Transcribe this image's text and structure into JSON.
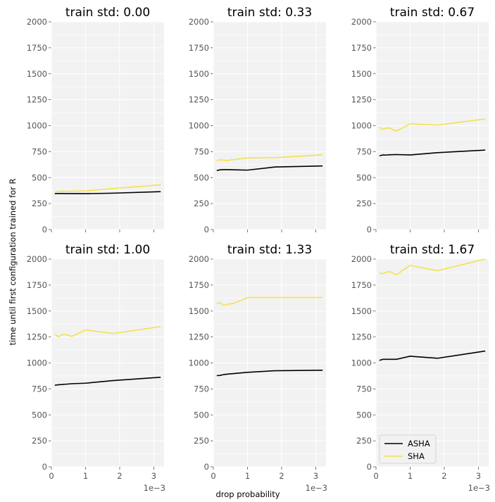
{
  "figure": {
    "xlabel": "drop probability",
    "ylabel": "time until first configuration trained for R",
    "x_offset_text": "1e−3"
  },
  "legend": {
    "position": "lower-left",
    "panel_index": 5
  },
  "chart_data": [
    {
      "type": "line",
      "title": "train std: 0.00",
      "x": [
        0.0001,
        0.0002,
        0.0003,
        0.0004,
        0.0006,
        0.001,
        0.0018,
        0.0032
      ],
      "xlim": [
        0,
        0.0033
      ],
      "ylim": [
        0,
        2000
      ],
      "xticks": [
        0,
        0.001,
        0.002,
        0.003
      ],
      "yticks": [
        0,
        250,
        500,
        750,
        1000,
        1250,
        1500,
        1750,
        2000
      ],
      "xtick_labels": [],
      "series": [
        {
          "name": "ASHA",
          "color": "#000000",
          "values": [
            345,
            347,
            347,
            346,
            346,
            345,
            350,
            365
          ]
        },
        {
          "name": "SHA",
          "color": "#f5e04a",
          "values": [
            360,
            368,
            370,
            368,
            369,
            372,
            395,
            430
          ]
        }
      ]
    },
    {
      "type": "line",
      "title": "train std: 0.33",
      "x": [
        0.0001,
        0.0002,
        0.0003,
        0.0004,
        0.0006,
        0.001,
        0.0018,
        0.0032
      ],
      "xlim": [
        0,
        0.0033
      ],
      "ylim": [
        0,
        2000
      ],
      "xticks": [
        0,
        0.001,
        0.002,
        0.003
      ],
      "yticks": [
        0,
        250,
        500,
        750,
        1000,
        1250,
        1500,
        1750,
        2000
      ],
      "xtick_labels": [],
      "series": [
        {
          "name": "ASHA",
          "color": "#000000",
          "values": [
            568,
            575,
            577,
            577,
            575,
            572,
            602,
            612
          ]
        },
        {
          "name": "SHA",
          "color": "#f5e04a",
          "values": [
            665,
            672,
            668,
            665,
            673,
            690,
            692,
            720
          ]
        }
      ]
    },
    {
      "type": "line",
      "title": "train std: 0.67",
      "x": [
        0.0001,
        0.0002,
        0.0003,
        0.0004,
        0.0006,
        0.001,
        0.0018,
        0.0032
      ],
      "xlim": [
        0,
        0.0033
      ],
      "ylim": [
        0,
        2000
      ],
      "xticks": [
        0,
        0.001,
        0.002,
        0.003
      ],
      "yticks": [
        0,
        250,
        500,
        750,
        1000,
        1250,
        1500,
        1750,
        2000
      ],
      "xtick_labels": [],
      "series": [
        {
          "name": "ASHA",
          "color": "#000000",
          "values": [
            710,
            718,
            717,
            720,
            722,
            718,
            740,
            765
          ]
        },
        {
          "name": "SHA",
          "color": "#f5e04a",
          "values": [
            985,
            965,
            978,
            975,
            948,
            1018,
            1005,
            1065
          ]
        }
      ]
    },
    {
      "type": "line",
      "title": "train std: 1.00",
      "x": [
        0.0001,
        0.0002,
        0.0003,
        0.0004,
        0.0006,
        0.001,
        0.0018,
        0.0032
      ],
      "xlim": [
        0,
        0.0033
      ],
      "ylim": [
        0,
        2000
      ],
      "xticks": [
        0,
        0.001,
        0.002,
        0.003
      ],
      "yticks": [
        0,
        250,
        500,
        750,
        1000,
        1250,
        1500,
        1750,
        2000
      ],
      "xtick_labels": [
        "0",
        "1",
        "2",
        "3"
      ],
      "series": [
        {
          "name": "ASHA",
          "color": "#000000",
          "values": [
            785,
            790,
            792,
            795,
            800,
            805,
            830,
            862
          ]
        },
        {
          "name": "SHA",
          "color": "#f5e04a",
          "values": [
            1280,
            1252,
            1270,
            1275,
            1255,
            1318,
            1283,
            1350
          ]
        }
      ]
    },
    {
      "type": "line",
      "title": "train std: 1.33",
      "x": [
        0.0001,
        0.0002,
        0.0003,
        0.0004,
        0.0006,
        0.001,
        0.0018,
        0.0032
      ],
      "xlim": [
        0,
        0.0033
      ],
      "ylim": [
        0,
        2000
      ],
      "xticks": [
        0,
        0.001,
        0.002,
        0.003
      ],
      "yticks": [
        0,
        250,
        500,
        750,
        1000,
        1250,
        1500,
        1750,
        2000
      ],
      "xtick_labels": [
        "0",
        "1",
        "2",
        "3"
      ],
      "series": [
        {
          "name": "ASHA",
          "color": "#000000",
          "values": [
            878,
            880,
            888,
            892,
            898,
            910,
            925,
            930
          ]
        },
        {
          "name": "SHA",
          "color": "#f5e04a",
          "values": [
            1570,
            1580,
            1555,
            1562,
            1575,
            1630,
            1630,
            1630
          ]
        }
      ]
    },
    {
      "type": "line",
      "title": "train std: 1.67",
      "x": [
        0.0001,
        0.0002,
        0.0003,
        0.0004,
        0.0006,
        0.001,
        0.0018,
        0.0032
      ],
      "xlim": [
        0,
        0.0033
      ],
      "ylim": [
        0,
        2000
      ],
      "xticks": [
        0,
        0.001,
        0.002,
        0.003
      ],
      "yticks": [
        0,
        250,
        500,
        750,
        1000,
        1250,
        1500,
        1750,
        2000
      ],
      "xtick_labels": [
        "0",
        "1",
        "2",
        "3"
      ],
      "series": [
        {
          "name": "ASHA",
          "color": "#000000",
          "values": [
            1025,
            1035,
            1035,
            1035,
            1035,
            1065,
            1045,
            1115
          ]
        },
        {
          "name": "SHA",
          "color": "#f5e04a",
          "values": [
            1870,
            1860,
            1875,
            1880,
            1850,
            1940,
            1888,
            2000
          ]
        }
      ]
    }
  ]
}
